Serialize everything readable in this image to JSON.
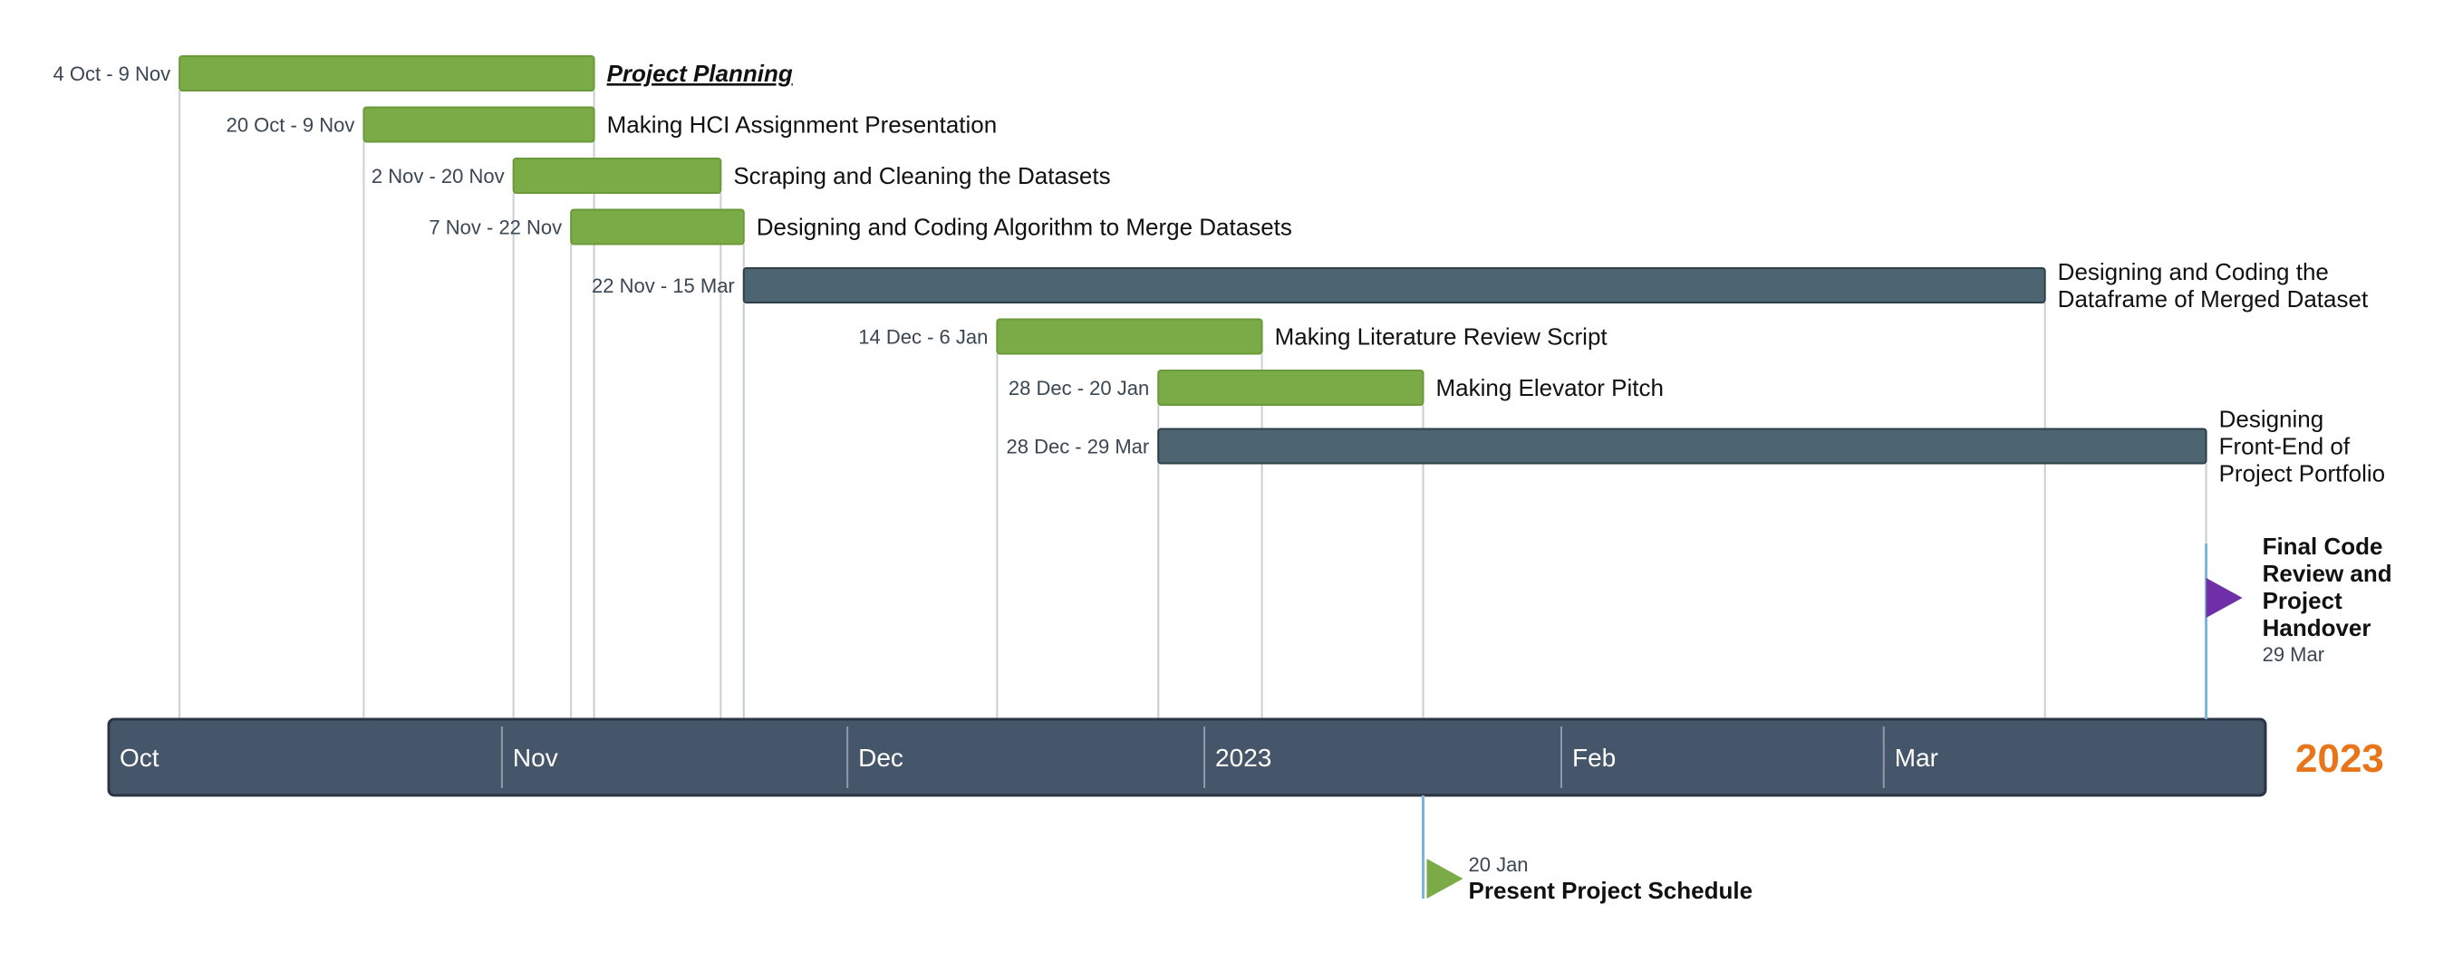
{
  "chart_data": {
    "type": "gantt",
    "title": "",
    "year_label": "2023",
    "axis": {
      "start": "2022-10-01",
      "end": "2023-03-31",
      "ticks": [
        {
          "label": "Oct",
          "date": "2022-10-01"
        },
        {
          "label": "Nov",
          "date": "2022-11-01"
        },
        {
          "label": "Dec",
          "date": "2022-12-01"
        },
        {
          "label": "2023",
          "date": "2023-01-01"
        },
        {
          "label": "Feb",
          "date": "2023-02-01"
        },
        {
          "label": "Mar",
          "date": "2023-03-01"
        }
      ]
    },
    "colors": {
      "green": "#7bab47",
      "slate": "#4c6570",
      "axis_bar": "#46566a",
      "milestone_purple": "#6f2fa6",
      "milestone_green": "#7bab47",
      "year": "#e8751a"
    },
    "tasks": [
      {
        "name": "Project Planning",
        "date_label": "4 Oct - 9 Nov",
        "start": "2022-10-04",
        "end": "2022-11-09",
        "color": "green",
        "style": "summary"
      },
      {
        "name": "Making HCI Assignment Presentation",
        "date_label": "20 Oct - 9 Nov",
        "start": "2022-10-20",
        "end": "2022-11-09",
        "color": "green"
      },
      {
        "name": "Scraping and Cleaning the Datasets",
        "date_label": "2 Nov - 20 Nov",
        "start": "2022-11-02",
        "end": "2022-11-20",
        "color": "green"
      },
      {
        "name": "Designing and Coding Algorithm to Merge Datasets",
        "date_label": "7 Nov - 22 Nov",
        "start": "2022-11-07",
        "end": "2022-11-22",
        "color": "green"
      },
      {
        "name": "Designing and Coding the Dataframe of Merged Dataset",
        "date_label": "22 Nov - 15 Mar",
        "start": "2022-11-22",
        "end": "2023-03-15",
        "color": "slate"
      },
      {
        "name": "Making Literature Review Script",
        "date_label": "14 Dec - 6 Jan",
        "start": "2022-12-14",
        "end": "2023-01-06",
        "color": "green"
      },
      {
        "name": "Making Elevator Pitch",
        "date_label": "28 Dec - 20 Jan",
        "start": "2022-12-28",
        "end": "2023-01-20",
        "color": "green"
      },
      {
        "name": "Designing Front-End of Project Portfolio",
        "date_label": "28 Dec - 29 Mar",
        "start": "2022-12-28",
        "end": "2023-03-29",
        "color": "slate"
      }
    ],
    "milestones": [
      {
        "name": "Final Code Review and Project Handover",
        "date_label": "29 Mar",
        "date": "2023-03-29",
        "color": "milestone_purple",
        "position": "above"
      },
      {
        "name": "Present Project Schedule",
        "date_label": "20 Jan",
        "date": "2023-01-20",
        "color": "milestone_green",
        "position": "below"
      }
    ]
  }
}
